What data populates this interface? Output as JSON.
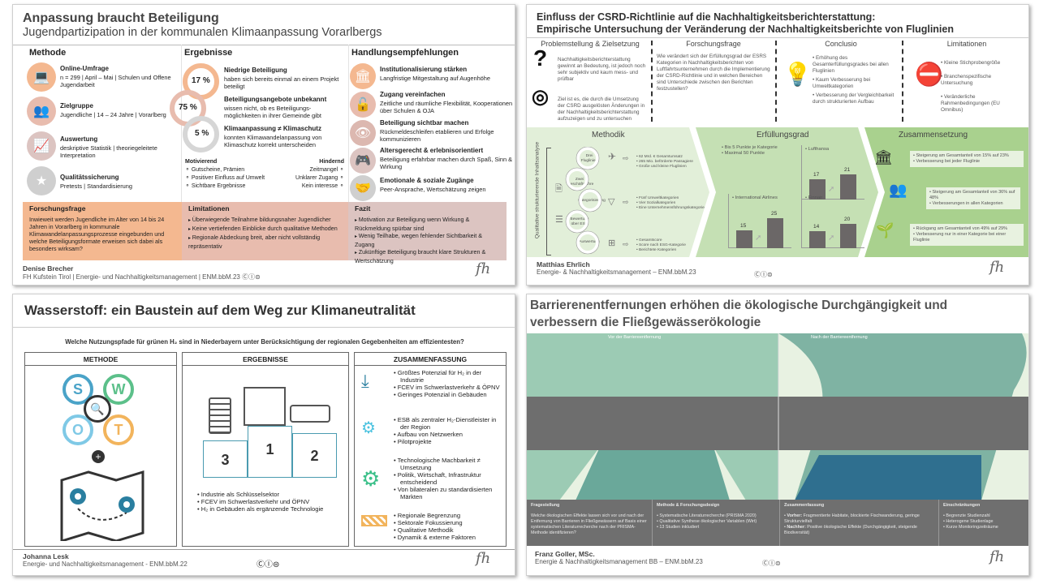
{
  "poster1": {
    "title": "Anpassung braucht Beteiligung",
    "subtitle": "Jugendpartizipation in der kommunalen Klimaanpassung Vorarlbergs",
    "columns": [
      "Methode",
      "Ergebnisse",
      "Handlungsempfehlungen"
    ],
    "methode": [
      {
        "icon": "laptop-icon",
        "title": "Online-Umfrage",
        "text": "n = 299 | April – Mai | Schulen und Offene Jugendarbeit"
      },
      {
        "icon": "people-icon",
        "title": "Zielgruppe",
        "text": "Jugendliche | 14 – 24 Jahre | Vorarlberg"
      },
      {
        "icon": "chart-icon",
        "title": "Auswertung",
        "text": "deskriptive Statistik |  theoriegeleitete Interpretation"
      },
      {
        "icon": "star-icon",
        "title": "Qualitätssicherung",
        "text": "Pretests | Standardisierung"
      }
    ],
    "ergebnisse": [
      {
        "pct": "17 %",
        "title": "Niedrige Beteiligung",
        "text": "haben sich bereits einmal an einem Projekt beteiligt"
      },
      {
        "pct": "75 %",
        "title": "Beteiligungsangebote unbekannt",
        "text": "wissen nicht, ob es Beteiligungs-möglichkeiten in ihrer Gemeinde gibt"
      },
      {
        "pct": "5 %",
        "title": "Klimaanpassung ≠ Klimaschutz",
        "text": "konnten Klimawandelanpassung von Klimaschutz korrekt unterscheiden"
      }
    ],
    "motivierend": {
      "label": "Motivierend",
      "items": [
        "Gutscheine, Prämien",
        "Positiver Einfluss auf Umwelt",
        "Sichtbare Ergebnisse"
      ]
    },
    "hindernd": {
      "label": "Hindernd",
      "items": [
        "Zeitmangel",
        "Unklarer Zugang",
        "Kein interesse"
      ]
    },
    "empfehlungen": [
      {
        "icon": "institution-icon",
        "title": "Institutionalisierung stärken",
        "text": "Langfristige Mitgestaltung auf Augenhöhe"
      },
      {
        "icon": "unlock-icon",
        "title": "Zugang vereinfachen",
        "text": "Zeitliche und räumliche Flexibilität, Kooperationen über Schulen & OJA"
      },
      {
        "icon": "eye-icon",
        "title": "Beteiligung sichtbar machen",
        "text": "Rückmeldeschleifen etablieren und Erfolge kommunizieren"
      },
      {
        "icon": "gamepad-icon",
        "title": "Altersgerecht & erlebnisorientiert",
        "text": "Beteiligung erfahrbar machen durch Spaß, Sinn & Wirkung"
      },
      {
        "icon": "handshake-icon",
        "title": "Emotionale & soziale Zugänge",
        "text": "Peer-Ansprache, Wertschätzung zeigen"
      }
    ],
    "forschungsfrage": {
      "title": "Forschungsfrage",
      "text": "Inwieweit werden Jugendliche im Alter von 14 bis 24 Jahren in Vorarlberg in kommunale Klimawandelanpassungsprozesse eingebunden und welche Beteiligungsformate erweisen sich dabei als besonders wirksam?"
    },
    "limitationen": {
      "title": "Limitationen",
      "items": [
        "Überwiegende Teilnahme bildungsnaher Jugendlicher",
        "Keine vertiefenden Einblicke durch qualitative Methoden",
        "Regionale Abdeckung breit, aber nicht vollständig repräsentativ"
      ]
    },
    "fazit": {
      "title": "Fazit",
      "items": [
        "Motivation zur Beteiligung wenn Wirkung & Rückmeldung spürbar sind",
        "Wenig Teilhabe, wegen fehlender Sichtbarkeit & Zugang",
        "Zukünftige Beteiligung braucht klare Strukturen & Wertschätzung"
      ]
    },
    "author": "Denise Brecher",
    "affiliation": "FH Kufstein Tirol | Energie- und Nachhaltigkeitsmanagement | ENM.bbM.23",
    "license": "cc by",
    "colors": {
      "orange": "#f4b890",
      "rose": "#e8bcae",
      "mauve": "#dcc4c1",
      "grey": "#cfcfcf"
    }
  },
  "poster2": {
    "title_line1": "Einfluss der CSRD-Richtlinie auf die Nachhaltigkeitsberichterstattung:",
    "title_line2": "Empirische Untersuchung der Veränderung der Nachhaltigkeitsberichte von Fluglinien",
    "problem": {
      "title": "Problemstellung & Zielsetzung",
      "text1": "Nachhaltigkeitsberichterstattung gewinnt an Bedeutung, ist jedoch noch sehr subjektiv und kaum mess- und prüfbar",
      "text2": "Ziel ist es, die durch die Umsetzung der CSRD ausgelösten Änderungen in der Nachhaltigkeitsberichterstattung aufzuzeigen und zu untersuchen"
    },
    "frage": {
      "title": "Forschungsfrage",
      "text": "Wie verändert sich der Erfüllungsgrad der ESRS Kategorien in Nachhaltigkeitsberichten von Luftfahrtsunternehmen durch die Implementierung der CSRD-Richtlinie und in welchen Bereichen sind Unterschiede zwischen den Berichten festzustellen?"
    },
    "conclusio": {
      "title": "Conclusio",
      "items": [
        "Erhöhung des Gesamterfüllungsgrades bei allen Fluglinien",
        "Kaum Verbesserung bei Umweltkategorien",
        "Verbesserung der Vergleichbarkeit durch strukturierten Aufbau"
      ]
    },
    "limitationen": {
      "title": "Limitationen",
      "items": [
        "Kleine Stichprobengröße",
        "Branchenspezifische Untersuchung",
        "Veränderliche Rahmenbedingungen (EU Omnibus)"
      ]
    },
    "methodik": {
      "title": "Methodik",
      "side_label": "Qualitative strukturierende Inhaltsanalyse",
      "steps": [
        "Drei Fluglinien",
        "Zwei Geschäftsjahre",
        "Kategorisierung",
        "Bewertung über ESG",
        "Auswertung"
      ],
      "notes": [
        [
          "62 Mrd. € Gesamtumsatz",
          "265 Mio. beförderte Passagiere",
          "Große und kleine Fluglinien"
        ],
        [
          "Fünf Umweltkategorien",
          "Vier Sozialkategorien",
          "Eine Unternehmensführungskategorie"
        ],
        [
          "Gesamtscore",
          "Score nach ESG-Kategorie",
          "Berichtete Kategorien"
        ]
      ]
    },
    "erfuellungsgrad": {
      "title": "Erfüllungsgrad",
      "notes": [
        "Bis 5 Punkte je Kategorie",
        "Maximal 50 Punkte"
      ],
      "airlines": [
        {
          "name": "Lufthansa",
          "before": 17,
          "after": 21
        },
        {
          "name": "International Airlines",
          "before": 15,
          "after": 25
        },
        {
          "name": "Finnair",
          "before": 14,
          "after": 20
        }
      ]
    },
    "zusammensetzung": {
      "title": "Zusammensetzung",
      "groups": [
        {
          "icon": "institution-icon",
          "items": [
            "Steigerung am Gesamtanteil von 15% auf 23%",
            "Verbesserung bei jeder Fluglinie"
          ]
        },
        {
          "icon": "people-icon",
          "items": [
            "Steigerung am Gesamtanteil von 36% auf 48%",
            "Verbesserungen in allen Kategorien"
          ]
        },
        {
          "icon": "plant-hand-icon",
          "items": [
            "Rückgang am Gesamtanteil von 49% auf 29%",
            "Verbesserung nur in einer Kategorie bei einer Fluglinie"
          ]
        }
      ]
    },
    "author": "Matthias Ehrlich",
    "affiliation": "Energie- & Nachhaltigkeitsmanagement – ENM.bbM.23",
    "colors": {
      "light": "#e2efd9",
      "mid": "#c5e0b4",
      "dark": "#a9d18e",
      "bar": "#6b6767"
    }
  },
  "poster3": {
    "title": "Wasserstoff: ein Baustein auf dem Weg zur Klimaneutralität",
    "question": "Welche Nutzungspfade für grünen H₂ sind in Niederbayern unter Berücksichtigung der regionalen Gegebenheiten am effizientesten?",
    "headers": [
      "METHODE",
      "ERGEBNISSE",
      "ZUSAMMENFASSUNG"
    ],
    "swot": [
      "S",
      "W",
      "O",
      "T"
    ],
    "podium": {
      "ranks": [
        "3",
        "1",
        "2"
      ],
      "labels": [
        "building-icon",
        "factory-icon",
        "truck-icon"
      ]
    },
    "ergebnisse": [
      "Industrie als Schlüsselsektor",
      "FCEV im Schwerlastverkehr und ÖPNV",
      "H₂ in Gebäuden als ergänzende Technologie"
    ],
    "zusammenfassung": [
      {
        "icon": "download-target-icon",
        "items": [
          "Größtes Potenzial für H₂ in der Industrie",
          "FCEV im Schwerlastverkehr & ÖPNV",
          "Geringes Potenzial in Gebäuden"
        ]
      },
      {
        "icon": "hand-gear-icon",
        "items": [
          "ESB als zentraler H₂-Dienstleister in der Region",
          "Aufbau von Netzwerken",
          "Pilotprojekte"
        ]
      },
      {
        "icon": "gear-icon",
        "items": [
          "Technologische Machbarkeit ≠ Umsetzung",
          "Politik, Wirtschaft, Infrastruktur entscheidend",
          "Von bilateralen zu standardisierten Märkten"
        ]
      },
      {
        "icon": "barrier-icon",
        "items": [
          "Regionale Begrenzung",
          "Sektorale Fokussierung",
          "Qualitative Methodik",
          "Dynamik & externe Faktoren"
        ]
      }
    ],
    "author": "Johanna Lesk",
    "affiliation": "Energie- und Nachhaltigkeitsmanagement - ENM.bbM.22",
    "colors": {
      "s": "#4aa3c8",
      "w": "#5cc08a",
      "o": "#7fc9e6",
      "t": "#f2b45c",
      "accent": "#2a7fa0"
    }
  },
  "poster4": {
    "title_line1": "Barrierenentfernungen erhöhen die ökologische Durchgängigkeit und",
    "title_line2": "verbessern die Fließgewässerökologie",
    "before_label": "Vor der Barriereentfernung",
    "after_label": "Nach der Barriereentfernung",
    "fragestellung": {
      "title": "Fragestellung",
      "text": "Welche ökologischen Effekte lassen sich vor und nach der Entfernung von Barrieren in Fließgewässern auf Basis einer systematischen Literaturrecherche nach der PRISMA-Methode identifizieren?"
    },
    "methode": {
      "title": "Methode & Forschungsdesign",
      "items": [
        "Systematische Literaturrecherche (PRISMA 2020)",
        "Qualitative Synthese ökologischer Variablen (Wirt)",
        "13 Studien inkludiert"
      ]
    },
    "zusammenfassung": {
      "title": "Zusammenfassung",
      "items": [
        {
          "label": "Vorher:",
          "text": "Fragmentierte Habitate, blockierte Fischwanderung, geringe Strukturvielfalt"
        },
        {
          "label": "Nachher:",
          "text": "Positive ökologische Effekte (Durchgängigkeit, steigende Biodiversität)"
        }
      ]
    },
    "einschraenkungen": {
      "title": "Einschränkungen",
      "items": [
        "Begrenzte Studienzahl",
        "Heterogene Studienlage",
        "Kurze Monitoringzeiträume"
      ]
    },
    "author": "Franz Goller, MSc.",
    "affiliation": "Energie & Nachhaltigkeitsmanagement BB – ENM.bbM.23",
    "colors": {
      "before": "#9ccbb4",
      "after": "#7fb3a3",
      "band": "#6f6f6f",
      "water": "#2f6f8f"
    }
  },
  "logo_text": "fh",
  "license_text": "ⒸⒾ⊜"
}
